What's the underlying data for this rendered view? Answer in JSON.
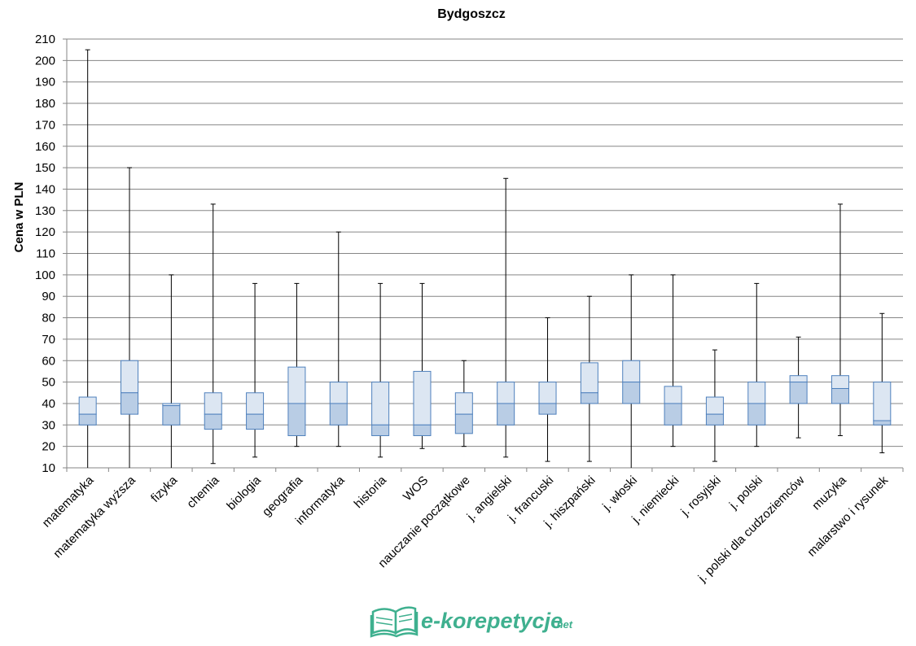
{
  "chart_data": {
    "type": "box",
    "title": "Bydgoszcz",
    "xlabel": "",
    "ylabel": "Cena w PLN",
    "ylim": [
      10,
      210
    ],
    "ytick_step": 10,
    "grid": true,
    "colors": {
      "upper_box": "#dce6f2",
      "lower_box": "#b9cde5",
      "box_border": "#4f81bd",
      "whisker": "#000000",
      "grid": "#868686"
    },
    "categories": [
      "matematyka",
      "matematyka wyższa",
      "fizyka",
      "chemia",
      "biologia",
      "geografia",
      "informatyka",
      "historia",
      "WOS",
      "nauczanie początkowe",
      "j. angielski",
      "j. francuski",
      "j. hiszpański",
      "j. włoski",
      "j. niemiecki",
      "j. rosyjski",
      "j. polski",
      "j. polski dla cudzoziemców",
      "muzyka",
      "malarstwo i rysunek"
    ],
    "min": [
      10,
      10,
      10,
      12,
      15,
      20,
      20,
      15,
      19,
      20,
      15,
      13,
      13,
      10,
      20,
      13,
      20,
      24,
      25,
      17
    ],
    "q1": [
      30,
      35,
      30,
      28,
      28,
      25,
      30,
      25,
      25,
      26,
      30,
      35,
      40,
      40,
      30,
      30,
      30,
      40,
      40,
      30
    ],
    "median": [
      35,
      45,
      39,
      35,
      35,
      40,
      40,
      30,
      30,
      35,
      40,
      40,
      45,
      50,
      40,
      35,
      40,
      50,
      47,
      32
    ],
    "q3": [
      43,
      60,
      40,
      45,
      45,
      57,
      50,
      50,
      55,
      45,
      50,
      50,
      59,
      60,
      48,
      43,
      50,
      53,
      53,
      50
    ],
    "max": [
      205,
      150,
      100,
      133,
      96,
      96,
      120,
      96,
      96,
      60,
      145,
      80,
      90,
      100,
      100,
      65,
      96,
      71,
      133,
      82
    ]
  },
  "logo": {
    "brand": "e-korepetycje",
    "suffix": ".net"
  }
}
